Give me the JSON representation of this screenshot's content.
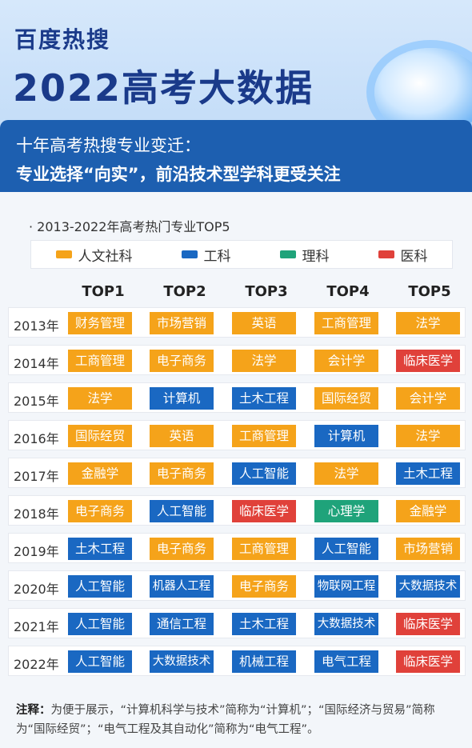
{
  "header": {
    "brand": "百度热搜",
    "title": "2022高考大数据",
    "subtitle_line1": "十年高考热搜专业变迁：",
    "subtitle_line2": "专业选择“向实”，前沿技术型学科更受关注"
  },
  "section_title": "· 2013-2022年高考热门专业TOP5",
  "legend": [
    {
      "label": "人文社科",
      "color": "#f5a31a"
    },
    {
      "label": "工科",
      "color": "#1a68c2"
    },
    {
      "label": "理科",
      "color": "#1fa37a"
    },
    {
      "label": "医科",
      "color": "#e0413a"
    }
  ],
  "columns": [
    "TOP1",
    "TOP2",
    "TOP3",
    "TOP4",
    "TOP5"
  ],
  "colors": {
    "人文社科": "#f5a31a",
    "工科": "#1a68c2",
    "理科": "#1fa37a",
    "医科": "#e0413a"
  },
  "rows": [
    {
      "year": "2013年",
      "items": [
        {
          "name": "财务管理",
          "cat": "人文社科"
        },
        {
          "name": "市场营销",
          "cat": "人文社科"
        },
        {
          "name": "英语",
          "cat": "人文社科"
        },
        {
          "name": "工商管理",
          "cat": "人文社科"
        },
        {
          "name": "法学",
          "cat": "人文社科"
        }
      ]
    },
    {
      "year": "2014年",
      "items": [
        {
          "name": "工商管理",
          "cat": "人文社科"
        },
        {
          "name": "电子商务",
          "cat": "人文社科"
        },
        {
          "name": "法学",
          "cat": "人文社科"
        },
        {
          "name": "会计学",
          "cat": "人文社科"
        },
        {
          "name": "临床医学",
          "cat": "医科"
        }
      ]
    },
    {
      "year": "2015年",
      "items": [
        {
          "name": "法学",
          "cat": "人文社科"
        },
        {
          "name": "计算机",
          "cat": "工科"
        },
        {
          "name": "土木工程",
          "cat": "工科"
        },
        {
          "name": "国际经贸",
          "cat": "人文社科"
        },
        {
          "name": "会计学",
          "cat": "人文社科"
        }
      ]
    },
    {
      "year": "2016年",
      "items": [
        {
          "name": "国际经贸",
          "cat": "人文社科"
        },
        {
          "name": "英语",
          "cat": "人文社科"
        },
        {
          "name": "工商管理",
          "cat": "人文社科"
        },
        {
          "name": "计算机",
          "cat": "工科"
        },
        {
          "name": "法学",
          "cat": "人文社科"
        }
      ]
    },
    {
      "year": "2017年",
      "items": [
        {
          "name": "金融学",
          "cat": "人文社科"
        },
        {
          "name": "电子商务",
          "cat": "人文社科"
        },
        {
          "name": "人工智能",
          "cat": "工科"
        },
        {
          "name": "法学",
          "cat": "人文社科"
        },
        {
          "name": "土木工程",
          "cat": "工科"
        }
      ]
    },
    {
      "year": "2018年",
      "items": [
        {
          "name": "电子商务",
          "cat": "人文社科"
        },
        {
          "name": "人工智能",
          "cat": "工科"
        },
        {
          "name": "临床医学",
          "cat": "医科"
        },
        {
          "name": "心理学",
          "cat": "理科"
        },
        {
          "name": "金融学",
          "cat": "人文社科"
        }
      ]
    },
    {
      "year": "2019年",
      "items": [
        {
          "name": "土木工程",
          "cat": "工科"
        },
        {
          "name": "电子商务",
          "cat": "人文社科"
        },
        {
          "name": "工商管理",
          "cat": "人文社科"
        },
        {
          "name": "人工智能",
          "cat": "工科"
        },
        {
          "name": "市场营销",
          "cat": "人文社科"
        }
      ]
    },
    {
      "year": "2020年",
      "items": [
        {
          "name": "人工智能",
          "cat": "工科"
        },
        {
          "name": "机器人工程",
          "cat": "工科"
        },
        {
          "name": "电子商务",
          "cat": "人文社科"
        },
        {
          "name": "物联网工程",
          "cat": "工科"
        },
        {
          "name": "大数据技术",
          "cat": "工科"
        }
      ]
    },
    {
      "year": "2021年",
      "items": [
        {
          "name": "人工智能",
          "cat": "工科"
        },
        {
          "name": "通信工程",
          "cat": "工科"
        },
        {
          "name": "土木工程",
          "cat": "工科"
        },
        {
          "name": "大数据技术",
          "cat": "工科"
        },
        {
          "name": "临床医学",
          "cat": "医科"
        }
      ]
    },
    {
      "year": "2022年",
      "items": [
        {
          "name": "人工智能",
          "cat": "工科"
        },
        {
          "name": "大数据技术",
          "cat": "工科"
        },
        {
          "name": "机械工程",
          "cat": "工科"
        },
        {
          "name": "电气工程",
          "cat": "工科"
        },
        {
          "name": "临床医学",
          "cat": "医科"
        }
      ]
    }
  ],
  "note": {
    "label": "注释：",
    "text": "为便于展示，“计算机科学与技术”简称为“计算机”；“国际经济与贸易”简称为“国际经贸”；“电气工程及其自动化”简称为“电气工程”。"
  }
}
